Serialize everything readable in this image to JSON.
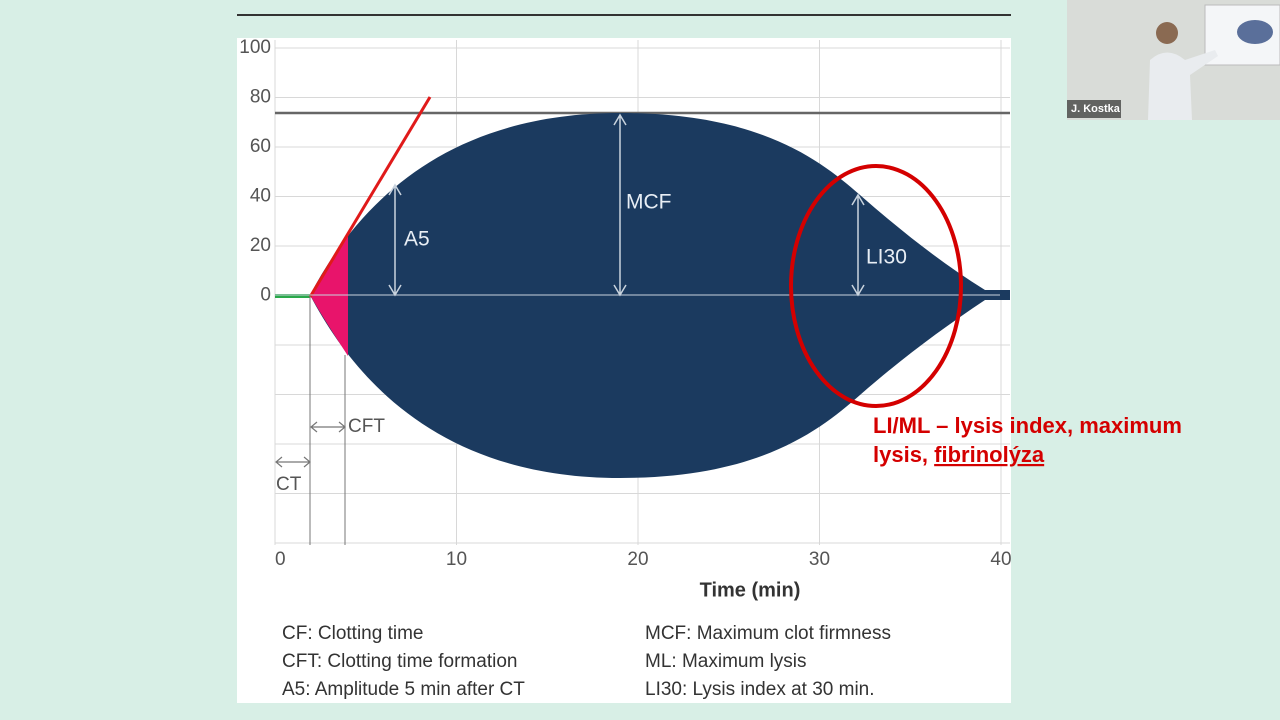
{
  "screen": {
    "slide": {
      "figure": {
        "y_tick_labels": [
          "100",
          "80",
          "60",
          "40",
          "20",
          "0"
        ],
        "x_tick_labels": [
          "0",
          "10",
          "20",
          "30",
          "40"
        ],
        "x_axis_title": "Time (min)",
        "curve_labels": {
          "a5": "A5",
          "mcf": "MCF",
          "li30": "LI30",
          "cft": "CFT",
          "ct": "CT"
        },
        "legend": [
          "CF: Clotting time",
          "CFT: Clotting time formation",
          "A5: Amplitude 5 min after CT",
          "MCF: Maximum clot firmness",
          "ML: Maximum lysis",
          "LI30: Lysis index at 30 min."
        ]
      },
      "annotation": {
        "line1": "LI/ML – lysis index, maximum",
        "line2_prefix": "lysis, ",
        "line2_link": "fibrinolýza"
      }
    },
    "webcam": {
      "participant_name": "J. Kostka"
    }
  }
}
